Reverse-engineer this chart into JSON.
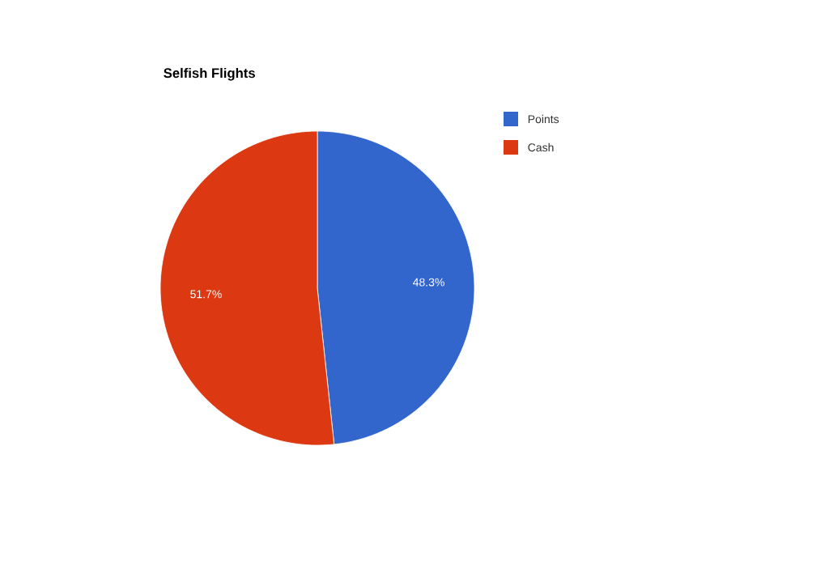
{
  "chart_data": {
    "type": "pie",
    "title": "Selfish Flights",
    "categories": [
      "Points",
      "Cash"
    ],
    "values": [
      48.3,
      51.7
    ],
    "colors": [
      "#3366cc",
      "#dc3912"
    ],
    "value_labels": [
      "48.3%",
      "51.7%"
    ],
    "legend": "top right"
  }
}
